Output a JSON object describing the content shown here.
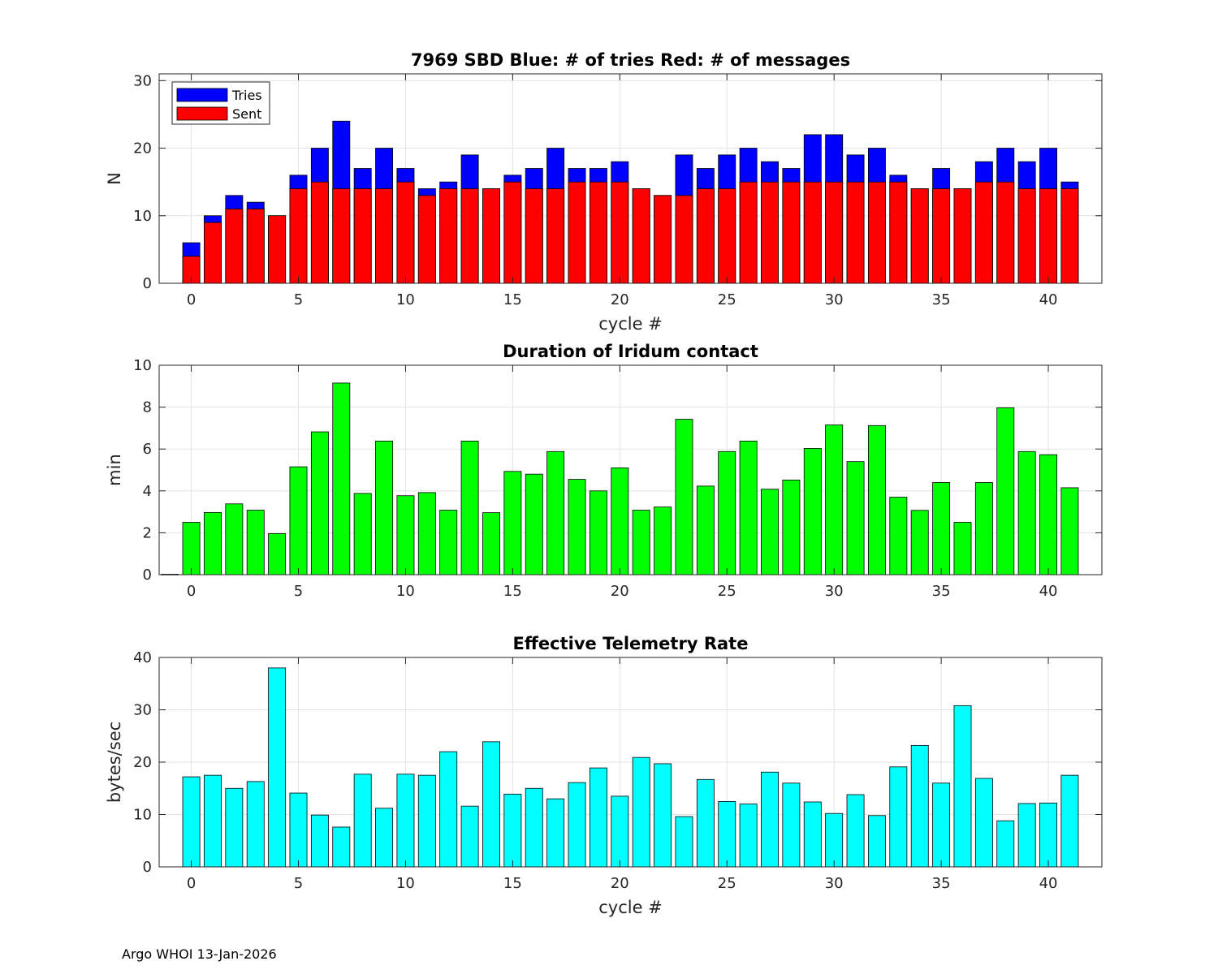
{
  "footer": "Argo WHOI 13-Jan-2026",
  "chart_data": [
    {
      "type": "bar",
      "stacked_overlay": true,
      "title": "7969 SBD  Blue: # of tries   Red: # of messages",
      "xlabel": "cycle #",
      "ylabel": "N",
      "xlim": [
        -1.5,
        42.5
      ],
      "ylim": [
        0,
        31
      ],
      "xticks": [
        0,
        5,
        10,
        15,
        20,
        25,
        30,
        35,
        40
      ],
      "yticks": [
        0,
        10,
        20,
        30
      ],
      "grid": true,
      "legend_position": "top-left",
      "x": [
        0,
        1,
        2,
        3,
        4,
        5,
        6,
        7,
        8,
        9,
        10,
        11,
        12,
        13,
        14,
        15,
        16,
        17,
        18,
        19,
        20,
        21,
        22,
        23,
        24,
        25,
        26,
        27,
        28,
        29,
        30,
        31,
        32,
        33,
        34,
        35,
        36,
        37,
        38,
        39,
        40,
        41
      ],
      "series": [
        {
          "name": "Tries",
          "color": "#0000ff",
          "values": [
            6,
            10,
            13,
            12,
            10,
            16,
            20,
            24,
            17,
            20,
            17,
            14,
            15,
            19,
            14,
            16,
            17,
            20,
            17,
            17,
            18,
            14,
            13,
            19,
            17,
            19,
            20,
            18,
            17,
            22,
            22,
            19,
            20,
            16,
            14,
            17,
            14,
            18,
            20,
            18,
            20,
            15
          ]
        },
        {
          "name": "Sent",
          "color": "#ff0000",
          "values": [
            4,
            9,
            11,
            11,
            10,
            14,
            15,
            14,
            14,
            14,
            15,
            13,
            14,
            14,
            14,
            15,
            14,
            14,
            15,
            15,
            15,
            14,
            13,
            13,
            14,
            14,
            15,
            15,
            15,
            15,
            15,
            15,
            15,
            15,
            14,
            14,
            14,
            15,
            15,
            14,
            14,
            14
          ]
        }
      ]
    },
    {
      "type": "bar",
      "title": "Duration of Iridum contact",
      "xlabel": "",
      "ylabel": "min",
      "xlim": [
        -1.5,
        42.5
      ],
      "ylim": [
        0,
        10
      ],
      "xticks": [
        0,
        5,
        10,
        15,
        20,
        25,
        30,
        35,
        40
      ],
      "yticks": [
        0,
        2,
        4,
        6,
        8,
        10
      ],
      "grid": true,
      "color": "#00ff00",
      "x": [
        -1,
        0,
        1,
        2,
        3,
        4,
        5,
        6,
        7,
        8,
        9,
        10,
        11,
        12,
        13,
        14,
        15,
        16,
        17,
        18,
        19,
        20,
        21,
        22,
        23,
        24,
        25,
        26,
        27,
        28,
        29,
        30,
        31,
        32,
        33,
        34,
        35,
        36,
        37,
        38,
        39,
        40,
        41
      ],
      "values": [
        0.02,
        2.5,
        2.97,
        3.38,
        3.08,
        1.96,
        5.15,
        6.82,
        9.15,
        3.88,
        6.38,
        3.77,
        3.92,
        3.08,
        6.38,
        2.96,
        4.93,
        4.8,
        5.88,
        4.55,
        4.0,
        5.1,
        3.08,
        3.23,
        7.42,
        4.23,
        5.88,
        6.38,
        4.08,
        4.52,
        6.03,
        7.15,
        5.4,
        7.12,
        3.7,
        3.07,
        4.4,
        2.5,
        4.4,
        7.97,
        5.88,
        5.73,
        4.15
      ]
    },
    {
      "type": "bar",
      "title": "Effective Telemetry Rate",
      "xlabel": "cycle #",
      "ylabel": "bytes/sec",
      "xlim": [
        -1.5,
        42.5
      ],
      "ylim": [
        0,
        40
      ],
      "xticks": [
        0,
        5,
        10,
        15,
        20,
        25,
        30,
        35,
        40
      ],
      "yticks": [
        0,
        10,
        20,
        30,
        40
      ],
      "grid": true,
      "color": "#00ffff",
      "x": [
        0,
        1,
        2,
        3,
        4,
        5,
        6,
        7,
        8,
        9,
        10,
        11,
        12,
        13,
        14,
        15,
        16,
        17,
        18,
        19,
        20,
        21,
        22,
        23,
        24,
        25,
        26,
        27,
        28,
        29,
        30,
        31,
        32,
        33,
        34,
        35,
        36,
        37,
        38,
        39,
        40,
        41
      ],
      "values": [
        17.2,
        17.5,
        15.0,
        16.3,
        38.0,
        14.1,
        9.9,
        7.6,
        17.7,
        11.2,
        17.7,
        17.5,
        22.0,
        11.6,
        23.9,
        13.9,
        15.0,
        13.0,
        16.1,
        18.9,
        13.5,
        20.9,
        19.7,
        9.6,
        16.7,
        12.5,
        12.0,
        18.1,
        16.0,
        12.4,
        10.2,
        13.8,
        9.8,
        19.1,
        23.2,
        16.0,
        30.8,
        16.9,
        8.8,
        12.1,
        12.2,
        17.5
      ]
    }
  ]
}
